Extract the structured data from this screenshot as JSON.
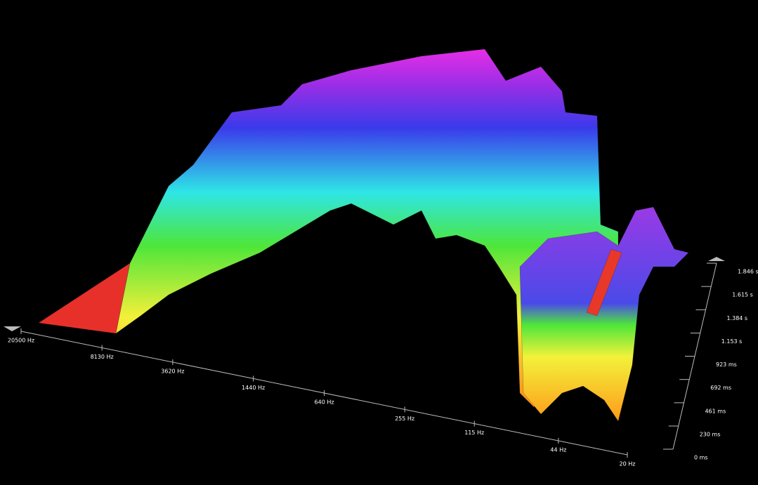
{
  "chart_data": {
    "type": "waterfall-3d",
    "xscale": "log",
    "xlim": [
      20500,
      20
    ],
    "xticks": [
      {
        "value": 20500,
        "label": "20500 Hz"
      },
      {
        "value": 8130,
        "label": "8130 Hz"
      },
      {
        "value": 3620,
        "label": "3620 Hz"
      },
      {
        "value": 1440,
        "label": "1440 Hz"
      },
      {
        "value": 640,
        "label": "640 Hz"
      },
      {
        "value": 255,
        "label": "255 Hz"
      },
      {
        "value": 115,
        "label": "115 Hz"
      },
      {
        "value": 44,
        "label": "44 Hz"
      },
      {
        "value": 20,
        "label": "20 Hz"
      }
    ],
    "ylim": [
      0,
      1846
    ],
    "yticks": [
      {
        "value": 0,
        "label": "0 ms"
      },
      {
        "value": 230,
        "label": "230 ms"
      },
      {
        "value": 461,
        "label": "461 ms"
      },
      {
        "value": 692,
        "label": "692 ms"
      },
      {
        "value": 923,
        "label": "923 ms"
      },
      {
        "value": 1153,
        "label": "1.153 s"
      },
      {
        "value": 1384,
        "label": "1.384 s"
      },
      {
        "value": 1615,
        "label": "1.615 s"
      },
      {
        "value": 1846,
        "label": "1.846 s"
      }
    ]
  }
}
